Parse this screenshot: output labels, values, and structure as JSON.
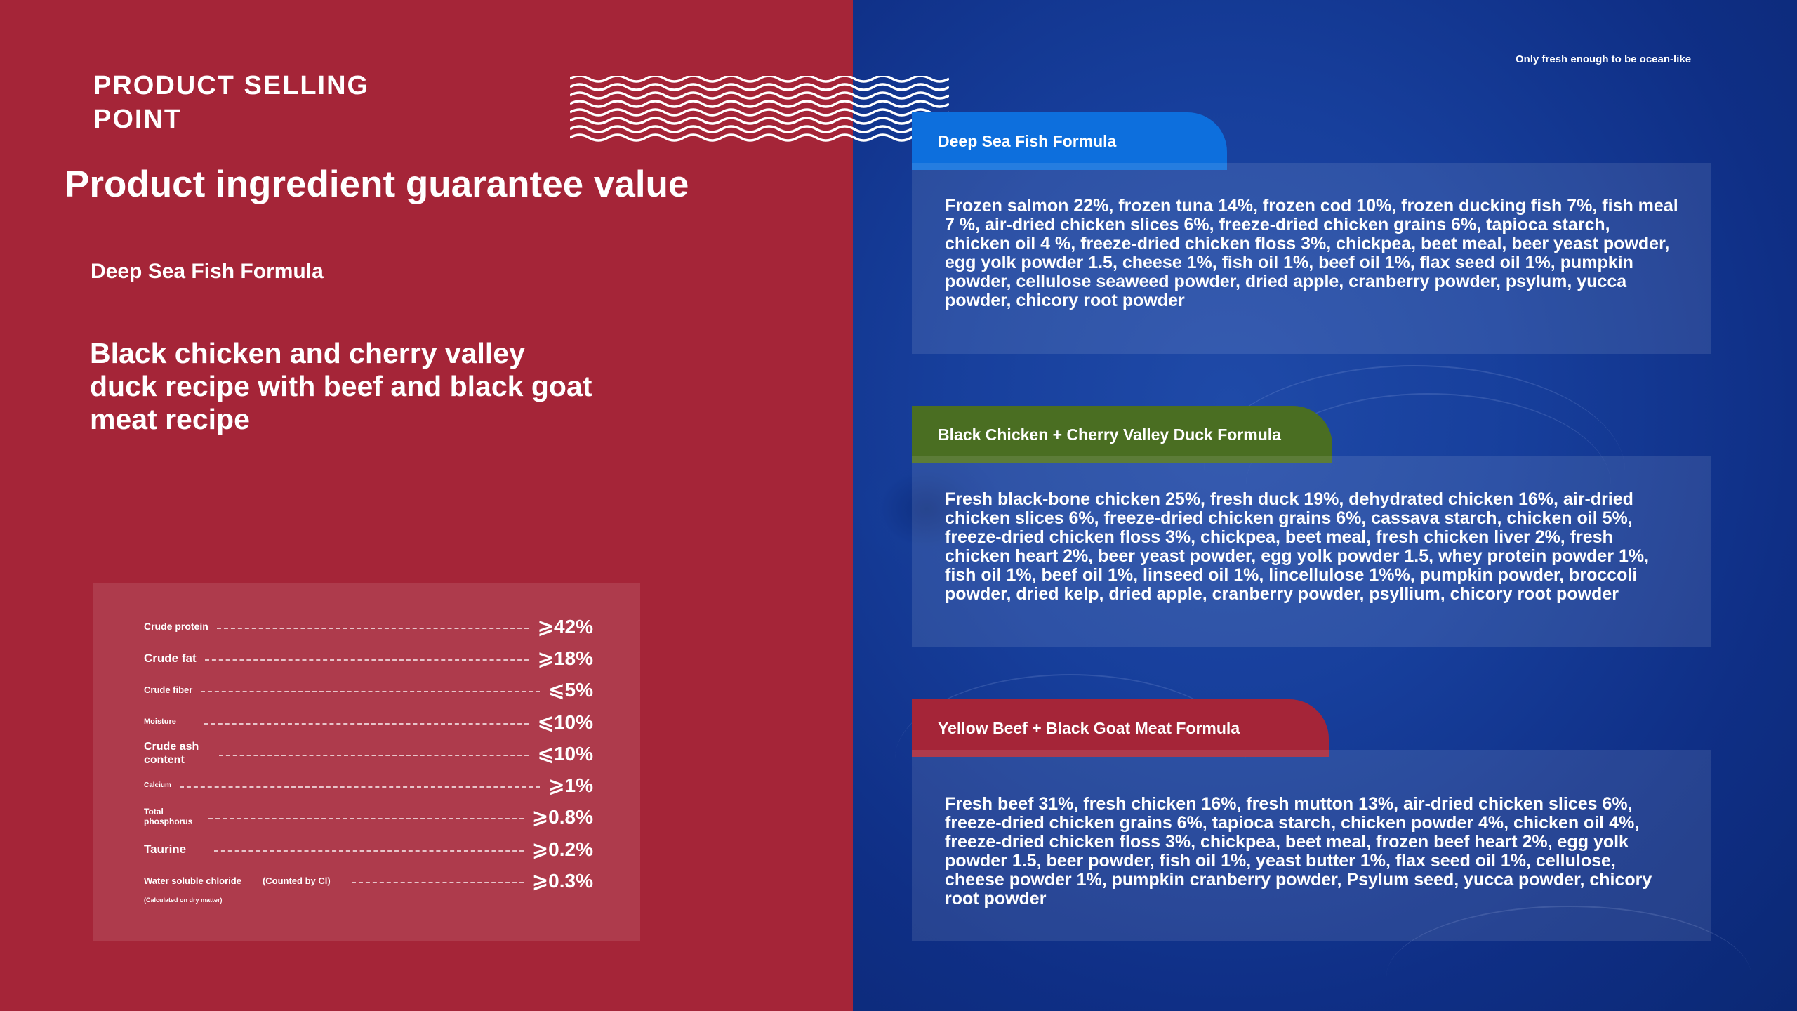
{
  "left": {
    "section_label": "PRODUCT SELLING POINT",
    "title": "Product ingredient guarantee value",
    "formula_name": "Deep Sea Fish Formula",
    "recipe_description": "Black chicken and cherry valley duck recipe with beef and black goat meat recipe"
  },
  "analysis": {
    "rows": [
      {
        "name": "Crude protein",
        "extra": "",
        "value": "⩾42%"
      },
      {
        "name": "Crude fat",
        "extra": "",
        "value": "⩾18%"
      },
      {
        "name": "Crude fiber",
        "extra": "",
        "value": "⩽5%"
      },
      {
        "name": "Moisture",
        "extra": "",
        "value": "⩽10%"
      },
      {
        "name": "Crude ash content",
        "extra": "",
        "value": "⩽10%"
      },
      {
        "name": "Calcium",
        "extra": "",
        "value": "⩾1%"
      },
      {
        "name": "Total phosphorus",
        "extra": "",
        "value": "⩾0.8%"
      },
      {
        "name": "Taurine",
        "extra": "",
        "value": "⩾0.2%"
      },
      {
        "name": "Water soluble chloride",
        "extra": "(Counted by Cl)",
        "value": "⩾0.3%"
      }
    ],
    "footnote": "(Calculated on dry matter)"
  },
  "right": {
    "tagline": "Only fresh enough to be ocean-like",
    "cards": [
      {
        "title": "Deep Sea Fish Formula",
        "tab_color": "#0d6fdd",
        "text": "Frozen salmon 22%, frozen tuna 14%, frozen cod 10%, frozen ducking fish 7%, fish meal 7 %, air-dried chicken slices 6%, freeze-dried chicken grains 6%, tapioca starch, chicken oil 4 %, freeze-dried chicken floss 3%, chickpea, beet meal, beer yeast powder, egg yolk powder 1.5, cheese 1%, fish oil 1%, beef oil 1%, flax seed oil 1%, pumpkin powder, cellulose seaweed powder, dried apple, cranberry powder, psylum, yucca powder, chicory root powder"
      },
      {
        "title": "Black Chicken + Cherry Valley Duck Formula",
        "tab_color": "#4a6e22",
        "text": "Fresh black-bone chicken 25%, fresh duck 19%, dehydrated chicken 16%, air-dried chicken slices 6%, freeze-dried chicken grains 6%, cassava starch, chicken oil 5%, freeze-dried chicken floss 3%, chickpea, beet meal, fresh chicken liver 2%, fresh chicken heart 2%, beer yeast powder, egg yolk powder 1.5, whey protein powder 1%, fish oil 1%, beef oil 1%, linseed oil 1%, lincellulose 1%%, pumpkin powder, broccoli powder, dried kelp, dried apple, cranberry powder, psyllium, chicory root powder"
      },
      {
        "title": "Yellow Beef + Black Goat Meat Formula",
        "tab_color": "#a52538",
        "text": "Fresh beef 31%, fresh chicken 16%, fresh mutton 13%, air-dried chicken slices 6%, freeze-dried chicken grains 6%, tapioca starch, chicken powder 4%, chicken oil 4%, freeze-dried chicken floss 3%, chickpea, beet meal, frozen beef heart 2%, egg yolk powder 1.5, beer powder, fish oil 1%, yeast butter 1%, flax seed oil 1%, cellulose, cheese powder 1%, pumpkin cranberry powder, Psylum seed, yucca powder, chicory root powder"
      }
    ]
  },
  "colors": {
    "left_background": "#a52538",
    "right_background": "#173f9c"
  }
}
